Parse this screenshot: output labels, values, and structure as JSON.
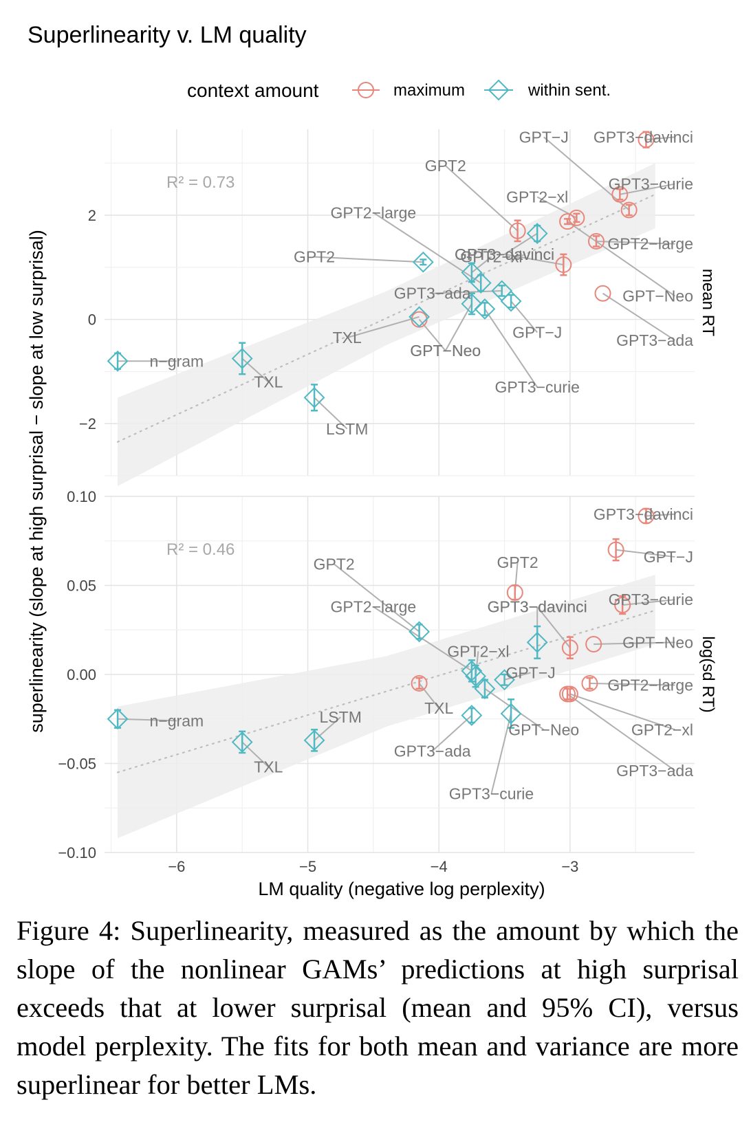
{
  "chart_data": {
    "type": "scatter",
    "title": "Superlinearity v. LM quality",
    "xlabel": "LM quality (negative log perplexity)",
    "ylabel": "superlinearity (slope at high surprisal − slope at low surprisal)",
    "legend": {
      "title": "context amount",
      "placement": "top",
      "entries": [
        {
          "name": "maximum",
          "color": "#e8867c",
          "marker": "circle"
        },
        {
          "name": "within sent.",
          "color": "#4fb8c2",
          "marker": "diamond"
        }
      ]
    },
    "x_ticks": [
      "−6",
      "−5",
      "−4",
      "−3"
    ],
    "x_tick_values": [
      -6,
      -5,
      -4,
      -3
    ],
    "xlim": [
      -6.55,
      -2.05
    ],
    "grid": true,
    "panels": [
      {
        "name": "mean RT",
        "r2": "R² = 0.73",
        "ylim": [
          -3.0,
          3.65
        ],
        "y_ticks": [
          "−2",
          "0",
          "2"
        ],
        "y_tick_values": [
          -2,
          0,
          2
        ],
        "trend": {
          "x0": -6.45,
          "y0": -2.35,
          "x1": -2.35,
          "y1": 2.4,
          "band_lo0": -3.2,
          "band_hi0": -1.5,
          "band_lo1": 1.75,
          "band_hi1": 3.0
        },
        "points": [
          {
            "group": "maximum",
            "label": "GPT3−davinci",
            "x": -2.42,
            "y": 3.45,
            "err": 0.15,
            "lx": -2.2,
            "ly": 3.5
          },
          {
            "group": "maximum",
            "label": "GPT3−curie",
            "x": -2.62,
            "y": 2.4,
            "err": 0.1,
            "lx": -2.2,
            "ly": 2.6
          },
          {
            "group": "maximum",
            "label": "GPT−J",
            "x": -2.55,
            "y": 2.1,
            "err": 0.1,
            "lx": -3.2,
            "ly": 3.5
          },
          {
            "group": "maximum",
            "label": "GPT2−xl",
            "x": -2.95,
            "y": 1.95,
            "err": 0.08,
            "lx": -3.25,
            "ly": 2.35
          },
          {
            "group": "maximum",
            "label": "GPT−Neo",
            "x": -3.02,
            "y": 1.88,
            "err": 0.05,
            "lx": -2.2,
            "ly": 0.45
          },
          {
            "group": "maximum",
            "label": "GPT2",
            "x": -3.4,
            "y": 1.7,
            "err": 0.2,
            "lx": -3.95,
            "ly": 2.95
          },
          {
            "group": "maximum",
            "label": "GPT2−large",
            "x": -2.8,
            "y": 1.5,
            "err": 0.1,
            "lx": -2.2,
            "ly": 1.45
          },
          {
            "group": "maximum",
            "label": "GPT3−davinci",
            "x": -3.05,
            "y": 1.05,
            "err": 0.2,
            "lx": -3.5,
            "ly": 1.25
          },
          {
            "group": "maximum",
            "label": "GPT3−ada",
            "x": -2.75,
            "y": 0.5,
            "err": 0.0,
            "lx": -2.2,
            "ly": -0.4
          },
          {
            "group": "maximum",
            "label": "GPT−Neo",
            "x": -4.15,
            "y": 0.0,
            "err": 0.0,
            "lx": -3.95,
            "ly": -0.6
          },
          {
            "group": "within sent.",
            "label": "GPT3−davinci",
            "x": -3.25,
            "y": 1.65,
            "err": 0.15,
            "lx": -3.5,
            "ly": 1.25
          },
          {
            "group": "within sent.",
            "label": "GPT2",
            "x": -4.12,
            "y": 1.1,
            "err": 0.05,
            "lx": -4.95,
            "ly": 1.2
          },
          {
            "group": "within sent.",
            "label": "GPT2−xl",
            "x": -3.75,
            "y": 0.9,
            "err": 0.18,
            "lx": -3.6,
            "ly": 1.2
          },
          {
            "group": "within sent.",
            "label": "GPT2−large",
            "x": -3.68,
            "y": 0.7,
            "err": 0.15,
            "lx": -4.5,
            "ly": 2.05
          },
          {
            "group": "within sent.",
            "label": "GPT3−ada",
            "x": -3.52,
            "y": 0.55,
            "err": 0.1,
            "lx": -4.05,
            "ly": 0.5
          },
          {
            "group": "within sent.",
            "label": "GPT−J",
            "x": -3.45,
            "y": 0.35,
            "err": 0.12,
            "lx": -3.25,
            "ly": -0.25
          },
          {
            "group": "within sent.",
            "label": "GPT−Neo",
            "x": -3.75,
            "y": 0.3,
            "err": 0.2,
            "lx": -3.95,
            "ly": -0.6
          },
          {
            "group": "within sent.",
            "label": "GPT3−curie",
            "x": -3.65,
            "y": 0.2,
            "err": 0.12,
            "lx": -3.25,
            "ly": -1.3
          },
          {
            "group": "within sent.",
            "label": "n−gram",
            "x": -6.45,
            "y": -0.8,
            "err": 0.15,
            "lx": -6.0,
            "ly": -0.8
          },
          {
            "group": "within sent.",
            "label": "TXL",
            "x": -5.5,
            "y": -0.75,
            "err": 0.3,
            "lx": -5.3,
            "ly": -1.2
          },
          {
            "group": "within sent.",
            "label": "TXL",
            "x": -4.15,
            "y": 0.05,
            "err": 0.0,
            "lx": -4.7,
            "ly": -0.35
          },
          {
            "group": "within sent.",
            "label": "LSTM",
            "x": -4.95,
            "y": -1.5,
            "err": 0.25,
            "lx": -4.7,
            "ly": -2.1
          }
        ]
      },
      {
        "name": "log(sd RT)",
        "r2": "R² = 0.46",
        "ylim": [
          -0.1,
          0.1
        ],
        "y_ticks": [
          "−0.10",
          "−0.05",
          "0.00",
          "0.05",
          "0.10"
        ],
        "y_tick_values": [
          -0.1,
          -0.05,
          0.0,
          0.05,
          0.1
        ],
        "trend": {
          "x0": -6.45,
          "y0": -0.055,
          "x1": -2.35,
          "y1": 0.036,
          "band_lo0": -0.092,
          "band_hi0": -0.018,
          "band_lo1": 0.017,
          "band_hi1": 0.056
        },
        "points": [
          {
            "group": "maximum",
            "label": "GPT3−davinci",
            "x": -2.42,
            "y": 0.089,
            "err": 0.004,
            "lx": -2.2,
            "ly": 0.09
          },
          {
            "group": "maximum",
            "label": "GPT−J",
            "x": -2.65,
            "y": 0.07,
            "err": 0.006,
            "lx": -2.2,
            "ly": 0.066
          },
          {
            "group": "maximum",
            "label": "GPT2",
            "x": -3.42,
            "y": 0.046,
            "err": 0.004,
            "lx": -3.4,
            "ly": 0.063
          },
          {
            "group": "maximum",
            "label": "GPT3−curie",
            "x": -2.6,
            "y": 0.039,
            "err": 0.005,
            "lx": -2.2,
            "ly": 0.042
          },
          {
            "group": "maximum",
            "label": "GPT3−davinci",
            "x": -3.0,
            "y": 0.015,
            "err": 0.006,
            "lx": -3.25,
            "ly": 0.038
          },
          {
            "group": "maximum",
            "label": "GPT−Neo",
            "x": -2.82,
            "y": 0.017,
            "err": 0.0,
            "lx": -2.2,
            "ly": 0.018
          },
          {
            "group": "maximum",
            "label": "GPT2−large",
            "x": -2.85,
            "y": -0.005,
            "err": 0.003,
            "lx": -2.2,
            "ly": -0.006
          },
          {
            "group": "maximum",
            "label": "GPT2−xl",
            "x": -3.0,
            "y": -0.011,
            "err": 0.003,
            "lx": -2.2,
            "ly": -0.031
          },
          {
            "group": "maximum",
            "label": "GPT3−ada",
            "x": -3.02,
            "y": -0.011,
            "err": 0.003,
            "lx": -2.2,
            "ly": -0.054
          },
          {
            "group": "maximum",
            "label": "TXL",
            "x": -4.15,
            "y": -0.005,
            "err": 0.003,
            "lx": -4.0,
            "ly": -0.019
          },
          {
            "group": "within sent.",
            "label": "GPT2",
            "x": -4.15,
            "y": 0.024,
            "err": 0.004,
            "lx": -4.8,
            "ly": 0.062
          },
          {
            "group": "within sent.",
            "label": "GPT3−davinci",
            "x": -3.25,
            "y": 0.018,
            "err": 0.009,
            "lx": -3.25,
            "ly": 0.038
          },
          {
            "group": "within sent.",
            "label": "GPT2−large",
            "x": -3.75,
            "y": 0.002,
            "err": 0.006,
            "lx": -4.5,
            "ly": 0.038
          },
          {
            "group": "within sent.",
            "label": "GPT2−xl",
            "x": -3.72,
            "y": -0.001,
            "err": 0.006,
            "lx": -3.7,
            "ly": 0.013
          },
          {
            "group": "within sent.",
            "label": "GPT−J",
            "x": -3.5,
            "y": -0.003,
            "err": 0.003,
            "lx": -3.3,
            "ly": 0.001
          },
          {
            "group": "within sent.",
            "label": "GPT−Neo",
            "x": -3.65,
            "y": -0.008,
            "err": 0.005,
            "lx": -3.2,
            "ly": -0.031
          },
          {
            "group": "within sent.",
            "label": "GPT3−ada",
            "x": -3.75,
            "y": -0.023,
            "err": 0.004,
            "lx": -4.05,
            "ly": -0.043
          },
          {
            "group": "within sent.",
            "label": "GPT3−curie",
            "x": -3.45,
            "y": -0.022,
            "err": 0.008,
            "lx": -3.6,
            "ly": -0.067
          },
          {
            "group": "within sent.",
            "label": "n−gram",
            "x": -6.45,
            "y": -0.025,
            "err": 0.005,
            "lx": -6.0,
            "ly": -0.026
          },
          {
            "group": "within sent.",
            "label": "TXL",
            "x": -5.5,
            "y": -0.038,
            "err": 0.006,
            "lx": -5.3,
            "ly": -0.052
          },
          {
            "group": "within sent.",
            "label": "LSTM",
            "x": -4.95,
            "y": -0.037,
            "err": 0.006,
            "lx": -4.75,
            "ly": -0.024
          }
        ]
      }
    ]
  },
  "caption": "Figure 4: Superlinearity, measured as the amount by which the slope of the nonlinear GAMs’ predictions at high surprisal exceeds that at lower surprisal (mean and 95% CI), versus model perplexity. The fits for both mean and variance are more superlinear for better LMs."
}
